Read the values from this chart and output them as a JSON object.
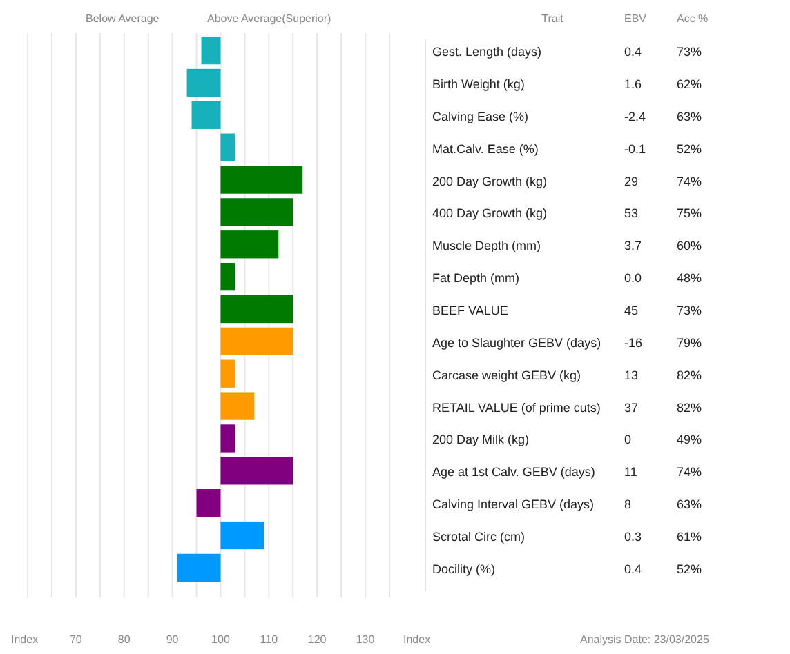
{
  "chart_data": {
    "type": "bar",
    "orientation": "horizontal",
    "grid": "x",
    "xlabel": "Index",
    "categories": [
      "Gest. Length (days)",
      "Birth Weight (kg)",
      "Calving Ease (%)",
      "Mat.Calv. Ease (%)",
      "200 Day Growth (kg)",
      "400 Day Growth (kg)",
      "Muscle Depth (mm)",
      "Fat Depth (mm)",
      "BEEF VALUE",
      "Age to Slaughter GEBV (days)",
      "Carcase weight GEBV (kg)",
      "RETAIL VALUE (of prime cuts)",
      "200 Day Milk (kg)",
      "Age at 1st Calv. GEBV (days)",
      "Calving Interval GEBV (days)",
      "Scrotal Circ (cm)",
      "Docility (%)"
    ],
    "base": [
      100,
      100,
      100,
      100,
      100,
      100,
      100,
      100,
      100,
      100,
      100,
      100,
      100,
      100,
      100,
      100,
      100
    ],
    "values": [
      -4,
      -7,
      -6,
      3,
      17,
      15,
      12,
      3,
      15,
      15,
      3,
      7,
      3,
      15,
      -5,
      9,
      -9
    ],
    "colors": [
      "#17b1bb",
      "#17b1bb",
      "#17b1bb",
      "#17b1bb",
      "#007a00",
      "#007a00",
      "#007a00",
      "#007a00",
      "#007a00",
      "#ff9a00",
      "#ff9a00",
      "#ff9a00",
      "#800080",
      "#800080",
      "#800080",
      "#0099ff",
      "#0099ff"
    ],
    "xlim": [
      60,
      135
    ],
    "xticks": [
      {
        "value": 60,
        "label": null
      },
      {
        "value": 65,
        "label": null
      },
      70,
      {
        "value": 75,
        "label": null
      },
      80,
      {
        "value": 85,
        "label": null
      },
      90,
      {
        "value": 95,
        "label": null
      },
      100,
      {
        "value": 105,
        "label": null
      },
      110,
      {
        "value": 115,
        "label": null
      },
      120,
      {
        "value": 125,
        "label": null
      },
      130,
      {
        "value": 135,
        "label": null
      }
    ],
    "annotations": [
      "Below Average",
      "Above Average(Superior)",
      "Trait",
      "EBV",
      "Acc %",
      "Index",
      "Analysis Date: 23/03/2025",
      "0.4",
      "73%",
      "1.6",
      "62%",
      "-2.4",
      "63%",
      "-0.1",
      "52%",
      "29",
      "74%",
      "53",
      "75%",
      "3.7",
      "60%",
      "0.0",
      "48%",
      "45",
      "73%",
      "-16",
      "79%",
      "13",
      "82%",
      "37",
      "82%",
      "0",
      "49%",
      "11",
      "74%",
      "8",
      "63%",
      "0.3",
      "61%",
      "0.4",
      "52%"
    ]
  }
}
